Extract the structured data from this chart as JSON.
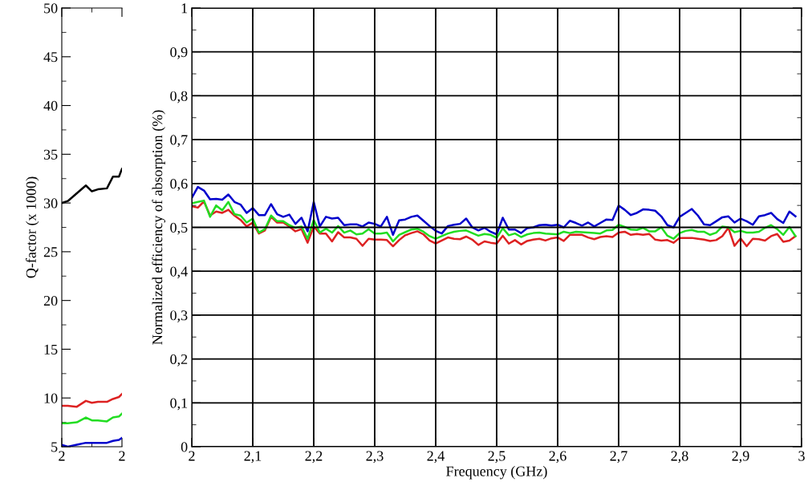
{
  "chart_data": [
    {
      "type": "line",
      "ylabel": "Q-factor (x 1000)",
      "x": [
        2.0,
        2.02,
        2.05,
        2.08,
        2.1,
        2.12,
        2.15,
        2.17,
        2.19,
        2.2
      ],
      "series": [
        {
          "color": "#000000",
          "values": [
            30.0,
            30.2,
            31.0,
            31.8,
            31.2,
            31.4,
            31.5,
            32.7,
            32.7,
            33.5
          ]
        },
        {
          "color": "#dd2222",
          "values": [
            9.2,
            9.2,
            9.1,
            9.7,
            9.5,
            9.6,
            9.6,
            9.9,
            10.1,
            10.4
          ]
        },
        {
          "color": "#22dd22",
          "values": [
            7.4,
            7.4,
            7.5,
            8.0,
            7.7,
            7.7,
            7.6,
            8.0,
            8.1,
            8.4
          ]
        },
        {
          "color": "#0000cc",
          "values": [
            5.2,
            5.0,
            5.2,
            5.4,
            5.4,
            5.4,
            5.4,
            5.6,
            5.7,
            5.9
          ]
        }
      ],
      "xlim": [
        2.0,
        2.2
      ],
      "xticks": [
        2,
        {
          "value": 2.1,
          "label": null
        },
        {
          "value": 2.2,
          "label": "2"
        }
      ],
      "ylim": [
        5,
        50
      ],
      "yticks": [
        5,
        {
          "value": 7.5,
          "label": null
        },
        10,
        {
          "value": 12.5,
          "label": null
        },
        15,
        {
          "value": 17.5,
          "label": null
        },
        20,
        {
          "value": 22.5,
          "label": null
        },
        25,
        {
          "value": 27.5,
          "label": null
        },
        30,
        {
          "value": 32.5,
          "label": null
        },
        35,
        {
          "value": 37.5,
          "label": null
        },
        40,
        {
          "value": 42.5,
          "label": null
        },
        45,
        {
          "value": 47.5,
          "label": null
        },
        50
      ],
      "grid": false,
      "legend": false
    },
    {
      "type": "line",
      "xlabel": "Frequency (GHz)",
      "ylabel": "Normalized efficiency of absorption (%)",
      "x": [
        2.0,
        2.01,
        2.02,
        2.03,
        2.04,
        2.05,
        2.06,
        2.07,
        2.08,
        2.09,
        2.1,
        2.11,
        2.12,
        2.13,
        2.14,
        2.15,
        2.16,
        2.17,
        2.18,
        2.19,
        2.2,
        2.21,
        2.22,
        2.23,
        2.24,
        2.25,
        2.26,
        2.27,
        2.28,
        2.29,
        2.3,
        2.31,
        2.32,
        2.33,
        2.34,
        2.35,
        2.36,
        2.37,
        2.38,
        2.39,
        2.4,
        2.41,
        2.42,
        2.43,
        2.44,
        2.45,
        2.46,
        2.47,
        2.48,
        2.49,
        2.5,
        2.51,
        2.52,
        2.53,
        2.54,
        2.55,
        2.56,
        2.57,
        2.58,
        2.59,
        2.6,
        2.61,
        2.62,
        2.63,
        2.64,
        2.65,
        2.66,
        2.67,
        2.68,
        2.69,
        2.7,
        2.71,
        2.72,
        2.73,
        2.74,
        2.75,
        2.76,
        2.77,
        2.78,
        2.79,
        2.8,
        2.81,
        2.82,
        2.83,
        2.84,
        2.85,
        2.86,
        2.87,
        2.88,
        2.89,
        2.9,
        2.91,
        2.92,
        2.93,
        2.94,
        2.95,
        2.96,
        2.97,
        2.98,
        2.99
      ],
      "series": [
        {
          "color": "#0000cc",
          "values": [
            0.567,
            0.592,
            0.584,
            0.564,
            0.565,
            0.563,
            0.575,
            0.558,
            0.552,
            0.533,
            0.544,
            0.528,
            0.528,
            0.553,
            0.53,
            0.524,
            0.529,
            0.508,
            0.522,
            0.491,
            0.558,
            0.502,
            0.524,
            0.52,
            0.522,
            0.505,
            0.507,
            0.507,
            0.502,
            0.511,
            0.508,
            0.502,
            0.524,
            0.483,
            0.516,
            0.518,
            0.524,
            0.527,
            0.515,
            0.503,
            0.492,
            0.486,
            0.503,
            0.506,
            0.508,
            0.52,
            0.5,
            0.493,
            0.499,
            0.49,
            0.484,
            0.522,
            0.495,
            0.495,
            0.487,
            0.498,
            0.5,
            0.505,
            0.506,
            0.504,
            0.506,
            0.5,
            0.515,
            0.51,
            0.504,
            0.511,
            0.502,
            0.51,
            0.518,
            0.517,
            0.55,
            0.54,
            0.528,
            0.533,
            0.541,
            0.54,
            0.538,
            0.525,
            0.505,
            0.5,
            0.524,
            0.533,
            0.542,
            0.527,
            0.507,
            0.505,
            0.514,
            0.523,
            0.525,
            0.511,
            0.52,
            0.514,
            0.506,
            0.525,
            0.528,
            0.533,
            0.519,
            0.51,
            0.536,
            0.525
          ]
        },
        {
          "color": "#dd2222",
          "values": [
            0.548,
            0.545,
            0.559,
            0.527,
            0.536,
            0.533,
            0.54,
            0.527,
            0.517,
            0.502,
            0.511,
            0.486,
            0.493,
            0.524,
            0.511,
            0.511,
            0.502,
            0.491,
            0.496,
            0.465,
            0.502,
            0.486,
            0.486,
            0.468,
            0.489,
            0.477,
            0.477,
            0.474,
            0.458,
            0.474,
            0.472,
            0.472,
            0.471,
            0.457,
            0.471,
            0.482,
            0.487,
            0.491,
            0.484,
            0.47,
            0.463,
            0.47,
            0.477,
            0.474,
            0.473,
            0.479,
            0.472,
            0.46,
            0.468,
            0.465,
            0.463,
            0.481,
            0.463,
            0.471,
            0.461,
            0.469,
            0.472,
            0.474,
            0.47,
            0.475,
            0.477,
            0.469,
            0.483,
            0.483,
            0.483,
            0.477,
            0.473,
            0.478,
            0.48,
            0.478,
            0.488,
            0.49,
            0.483,
            0.485,
            0.483,
            0.485,
            0.472,
            0.47,
            0.471,
            0.465,
            0.476,
            0.476,
            0.476,
            0.474,
            0.472,
            0.469,
            0.471,
            0.48,
            0.499,
            0.458,
            0.475,
            0.457,
            0.474,
            0.473,
            0.47,
            0.48,
            0.485,
            0.467,
            0.47,
            0.48
          ]
        },
        {
          "color": "#22dd22",
          "values": [
            0.555,
            0.558,
            0.561,
            0.524,
            0.55,
            0.539,
            0.558,
            0.53,
            0.527,
            0.511,
            0.52,
            0.488,
            0.496,
            0.527,
            0.514,
            0.514,
            0.505,
            0.499,
            0.502,
            0.474,
            0.517,
            0.488,
            0.497,
            0.488,
            0.503,
            0.488,
            0.493,
            0.484,
            0.486,
            0.496,
            0.486,
            0.486,
            0.488,
            0.468,
            0.483,
            0.489,
            0.495,
            0.497,
            0.49,
            0.48,
            0.474,
            0.48,
            0.486,
            0.49,
            0.492,
            0.493,
            0.487,
            0.481,
            0.485,
            0.483,
            0.476,
            0.498,
            0.482,
            0.486,
            0.478,
            0.484,
            0.487,
            0.488,
            0.486,
            0.485,
            0.484,
            0.49,
            0.487,
            0.49,
            0.489,
            0.488,
            0.487,
            0.486,
            0.493,
            0.494,
            0.506,
            0.501,
            0.495,
            0.494,
            0.499,
            0.491,
            0.491,
            0.5,
            0.481,
            0.474,
            0.487,
            0.492,
            0.494,
            0.49,
            0.49,
            0.483,
            0.488,
            0.502,
            0.5,
            0.489,
            0.492,
            0.488,
            0.488,
            0.49,
            0.499,
            0.505,
            0.496,
            0.483,
            0.501,
            0.48
          ]
        }
      ],
      "xlim": [
        2.0,
        3.0
      ],
      "xticks": [
        2,
        {
          "value": 2.1,
          "label": "2,1"
        },
        {
          "value": 2.2,
          "label": "2,2"
        },
        {
          "value": 2.3,
          "label": "2,3"
        },
        {
          "value": 2.4,
          "label": "2,4"
        },
        {
          "value": 2.5,
          "label": "2,5"
        },
        {
          "value": 2.6,
          "label": "2,6"
        },
        {
          "value": 2.7,
          "label": "2,7"
        },
        {
          "value": 2.8,
          "label": "2,8"
        },
        {
          "value": 2.9,
          "label": "2,9"
        },
        3
      ],
      "ylim": [
        0,
        1
      ],
      "yticks": [
        0,
        {
          "value": 0.05,
          "label": null
        },
        {
          "value": 0.1,
          "label": "0,1"
        },
        {
          "value": 0.15,
          "label": null
        },
        {
          "value": 0.2,
          "label": "0,2"
        },
        {
          "value": 0.25,
          "label": null
        },
        {
          "value": 0.3,
          "label": "0,3"
        },
        {
          "value": 0.35,
          "label": null
        },
        {
          "value": 0.4,
          "label": "0,4"
        },
        {
          "value": 0.45,
          "label": null
        },
        {
          "value": 0.5,
          "label": "0,5"
        },
        {
          "value": 0.55,
          "label": null
        },
        {
          "value": 0.6,
          "label": "0,6"
        },
        {
          "value": 0.65,
          "label": null
        },
        {
          "value": 0.7,
          "label": "0,7"
        },
        {
          "value": 0.75,
          "label": null
        },
        {
          "value": 0.8,
          "label": "0,8"
        },
        {
          "value": 0.85,
          "label": null
        },
        {
          "value": 0.9,
          "label": "0,9"
        },
        {
          "value": 0.95,
          "label": null
        },
        1
      ],
      "grid": true,
      "legend": false
    }
  ]
}
